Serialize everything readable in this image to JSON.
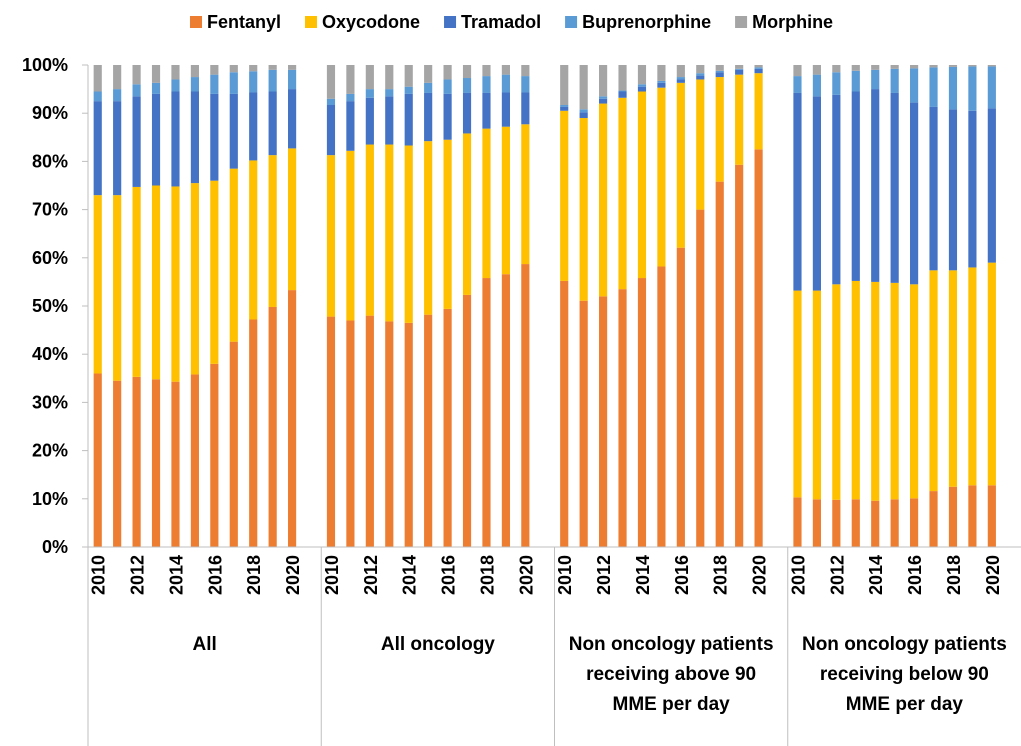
{
  "chart_data": {
    "type": "stacked_bar",
    "groups": [
      "All",
      "All oncology",
      "Non oncology patients receiving above 90 MME per day",
      "Non oncology patients receiving below 90 MME per day"
    ],
    "categories": [
      "2010",
      null,
      "2012",
      null,
      "2014",
      null,
      "2016",
      null,
      "2018",
      null,
      "2020",
      "2010",
      null,
      "2012",
      null,
      "2014",
      null,
      "2016",
      null,
      "2018",
      null,
      "2020",
      "2010",
      null,
      "2012",
      null,
      "2014",
      null,
      "2016",
      null,
      "2018",
      null,
      "2020",
      "2010",
      null,
      "2012",
      null,
      "2014",
      null,
      "2016",
      null,
      "2018",
      null,
      "2020"
    ],
    "series": [
      {
        "name": "Fentanyl",
        "color": "#ED7D31",
        "values": [
          36,
          34.5,
          35.3,
          34.8,
          34.3,
          35.8,
          38,
          42.6,
          47.2,
          49.8,
          53.3,
          47.8,
          47,
          48,
          46.8,
          46.5,
          48.2,
          49.4,
          52.3,
          55.8,
          56.6,
          58.7,
          55.2,
          51.1,
          52,
          53.5,
          55.8,
          58.2,
          62.1,
          70,
          75.8,
          79.3,
          82.5,
          10.3,
          9.9,
          9.8,
          9.9,
          9.6,
          9.9,
          10.1,
          11.6,
          12.5,
          12.8,
          12.8
        ]
      },
      {
        "name": "Oxycodone",
        "color": "#FFC000",
        "values": [
          37,
          38.5,
          39.4,
          40.2,
          40.5,
          39.7,
          38,
          35.9,
          33,
          31.5,
          29.4,
          33.5,
          35.2,
          35.5,
          36.7,
          36.8,
          36,
          35.1,
          33.5,
          31,
          30.6,
          29,
          35.3,
          37.9,
          40,
          39.7,
          38.7,
          37.1,
          34.2,
          27,
          21.7,
          18.7,
          15.8,
          42.9,
          43.3,
          44.7,
          45.3,
          45.4,
          44.9,
          44.4,
          45.8,
          44.9,
          45.2,
          46.2
        ]
      },
      {
        "name": "Tramadol",
        "color": "#4472C4",
        "values": [
          19.5,
          19.5,
          18.8,
          19,
          19.7,
          19,
          18,
          15.5,
          14.1,
          13.2,
          12.3,
          10.4,
          10.3,
          9.7,
          10,
          10.7,
          10,
          9.5,
          8.4,
          7.4,
          7.1,
          6.6,
          0.8,
          1.2,
          1,
          1.3,
          1,
          1,
          0.7,
          0.8,
          1,
          1,
          0.9,
          41,
          40.3,
          39.3,
          39.3,
          40,
          39.4,
          37.7,
          33.9,
          33.4,
          32.5,
          32
        ]
      },
      {
        "name": "Buprenorphine",
        "color": "#5B9BD5",
        "values": [
          2,
          2.5,
          2.5,
          2.3,
          2.5,
          3,
          4,
          4.5,
          4.4,
          4.5,
          4,
          1.3,
          1.5,
          1.8,
          1.5,
          1.5,
          2.1,
          3,
          3.1,
          3.5,
          3.7,
          3.4,
          0.4,
          0.6,
          0.5,
          0.2,
          0.5,
          0.4,
          0.5,
          0.5,
          0.3,
          0.2,
          0.3,
          3.5,
          4.5,
          4.7,
          4.3,
          4,
          5,
          7.1,
          8.2,
          8.8,
          9.2,
          8.7
        ]
      },
      {
        "name": "Morphine",
        "color": "#A5A5A5",
        "values": [
          5.5,
          5,
          4,
          3.7,
          3,
          2.5,
          2,
          1.5,
          1.3,
          1,
          1,
          7,
          6,
          5,
          5,
          4.5,
          3.7,
          3,
          2.7,
          2.3,
          2,
          2.3,
          8.3,
          9.2,
          6.5,
          5.3,
          4,
          3.3,
          2.5,
          1.7,
          1.2,
          0.8,
          0.5,
          2.3,
          2,
          1.5,
          1.2,
          1,
          0.8,
          0.7,
          0.5,
          0.4,
          0.3,
          0.3
        ]
      }
    ],
    "ylim": [
      0,
      100
    ],
    "yticks": [
      {
        "value": 0,
        "label": "0%"
      },
      {
        "value": 10,
        "label": "10%"
      },
      {
        "value": 20,
        "label": "20%"
      },
      {
        "value": 30,
        "label": "30%"
      },
      {
        "value": 40,
        "label": "40%"
      },
      {
        "value": 50,
        "label": "50%"
      },
      {
        "value": 60,
        "label": "60%"
      },
      {
        "value": 70,
        "label": "70%"
      },
      {
        "value": 80,
        "label": "80%"
      },
      {
        "value": 90,
        "label": "90%"
      },
      {
        "value": 100,
        "label": "100%"
      }
    ],
    "legend": "top",
    "grid": false
  }
}
